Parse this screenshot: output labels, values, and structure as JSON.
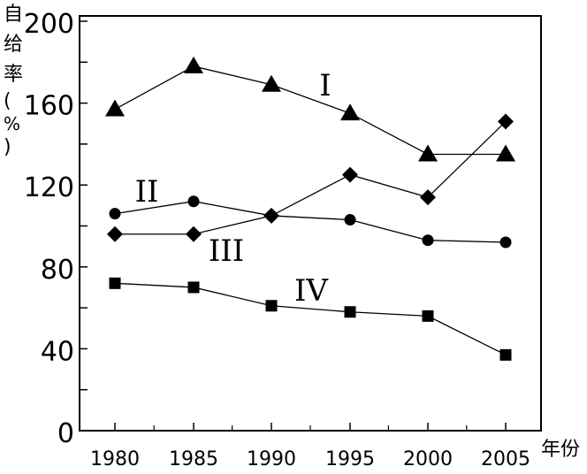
{
  "chart_data": {
    "type": "line",
    "title": "",
    "ylabel": "自给率（%）",
    "xunit": "年份",
    "x": [
      1980,
      1985,
      1990,
      1995,
      2000,
      2005
    ],
    "ylim": [
      0,
      200
    ],
    "yticks": [
      0,
      40,
      80,
      120,
      160,
      200
    ],
    "grid": false,
    "series": [
      {
        "name": "I",
        "marker": "triangle",
        "values": [
          157,
          178,
          169,
          155,
          135,
          135
        ]
      },
      {
        "name": "II",
        "marker": "circle",
        "values": [
          106,
          112,
          105,
          103,
          93,
          92
        ]
      },
      {
        "name": "III",
        "marker": "diamond",
        "values": [
          96,
          96,
          105,
          125,
          114,
          151
        ]
      },
      {
        "name": "IV",
        "marker": "square",
        "values": [
          72,
          70,
          61,
          58,
          56,
          37
        ]
      }
    ]
  }
}
